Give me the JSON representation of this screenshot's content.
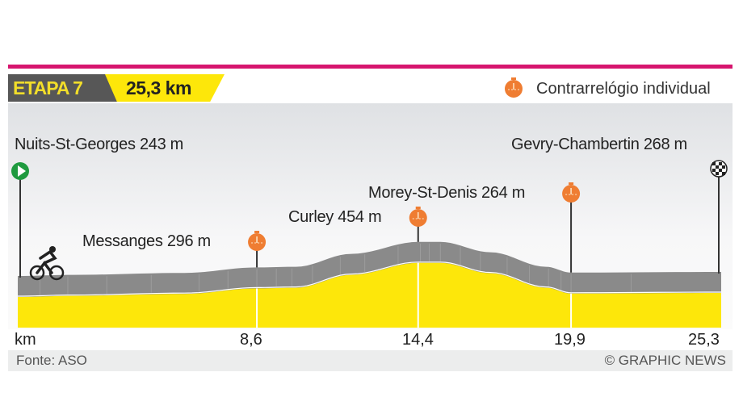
{
  "header": {
    "stage": "ETAPA 7",
    "distance": "25,3 km",
    "legend_label": "Contrarrelógio individual"
  },
  "colors": {
    "accent": "#d6156e",
    "yellow": "#fde70a",
    "gray": "#8a8a8a",
    "marker": "#ef7d32",
    "start": "#1f9a3f"
  },
  "chart_data": {
    "type": "area",
    "title": "ETAPA 7 25,3 km",
    "xlabel": "km",
    "xlim": [
      0,
      25.3
    ],
    "x_ticks": [
      "8,6",
      "14,4",
      "19,9",
      "25,3"
    ],
    "x_tick_values": [
      8.6,
      14.4,
      19.9,
      25.3
    ],
    "profile": [
      [
        0,
        243
      ],
      [
        2,
        250
      ],
      [
        6,
        262
      ],
      [
        8.6,
        296
      ],
      [
        10,
        300
      ],
      [
        12,
        380
      ],
      [
        14.4,
        454
      ],
      [
        15.2,
        454
      ],
      [
        17,
        390
      ],
      [
        19,
        300
      ],
      [
        19.9,
        264
      ],
      [
        25.3,
        268
      ]
    ],
    "points": [
      {
        "name": "Nuits-St-Georges 243 m",
        "km": 0,
        "type": "start"
      },
      {
        "name": "Messanges 296 m",
        "km": 8.6,
        "type": "time-check"
      },
      {
        "name": "Curley 454 m",
        "km": 14.4,
        "type": "time-check"
      },
      {
        "name": "Morey-St-Denis 264 m",
        "km": 19.9,
        "type": "time-check"
      },
      {
        "name": "Gevry-Chambertin 268 m",
        "km": 25.3,
        "type": "finish"
      }
    ]
  },
  "footer": {
    "source": "Fonte: ASO",
    "credit": "© GRAPHIC NEWS"
  }
}
